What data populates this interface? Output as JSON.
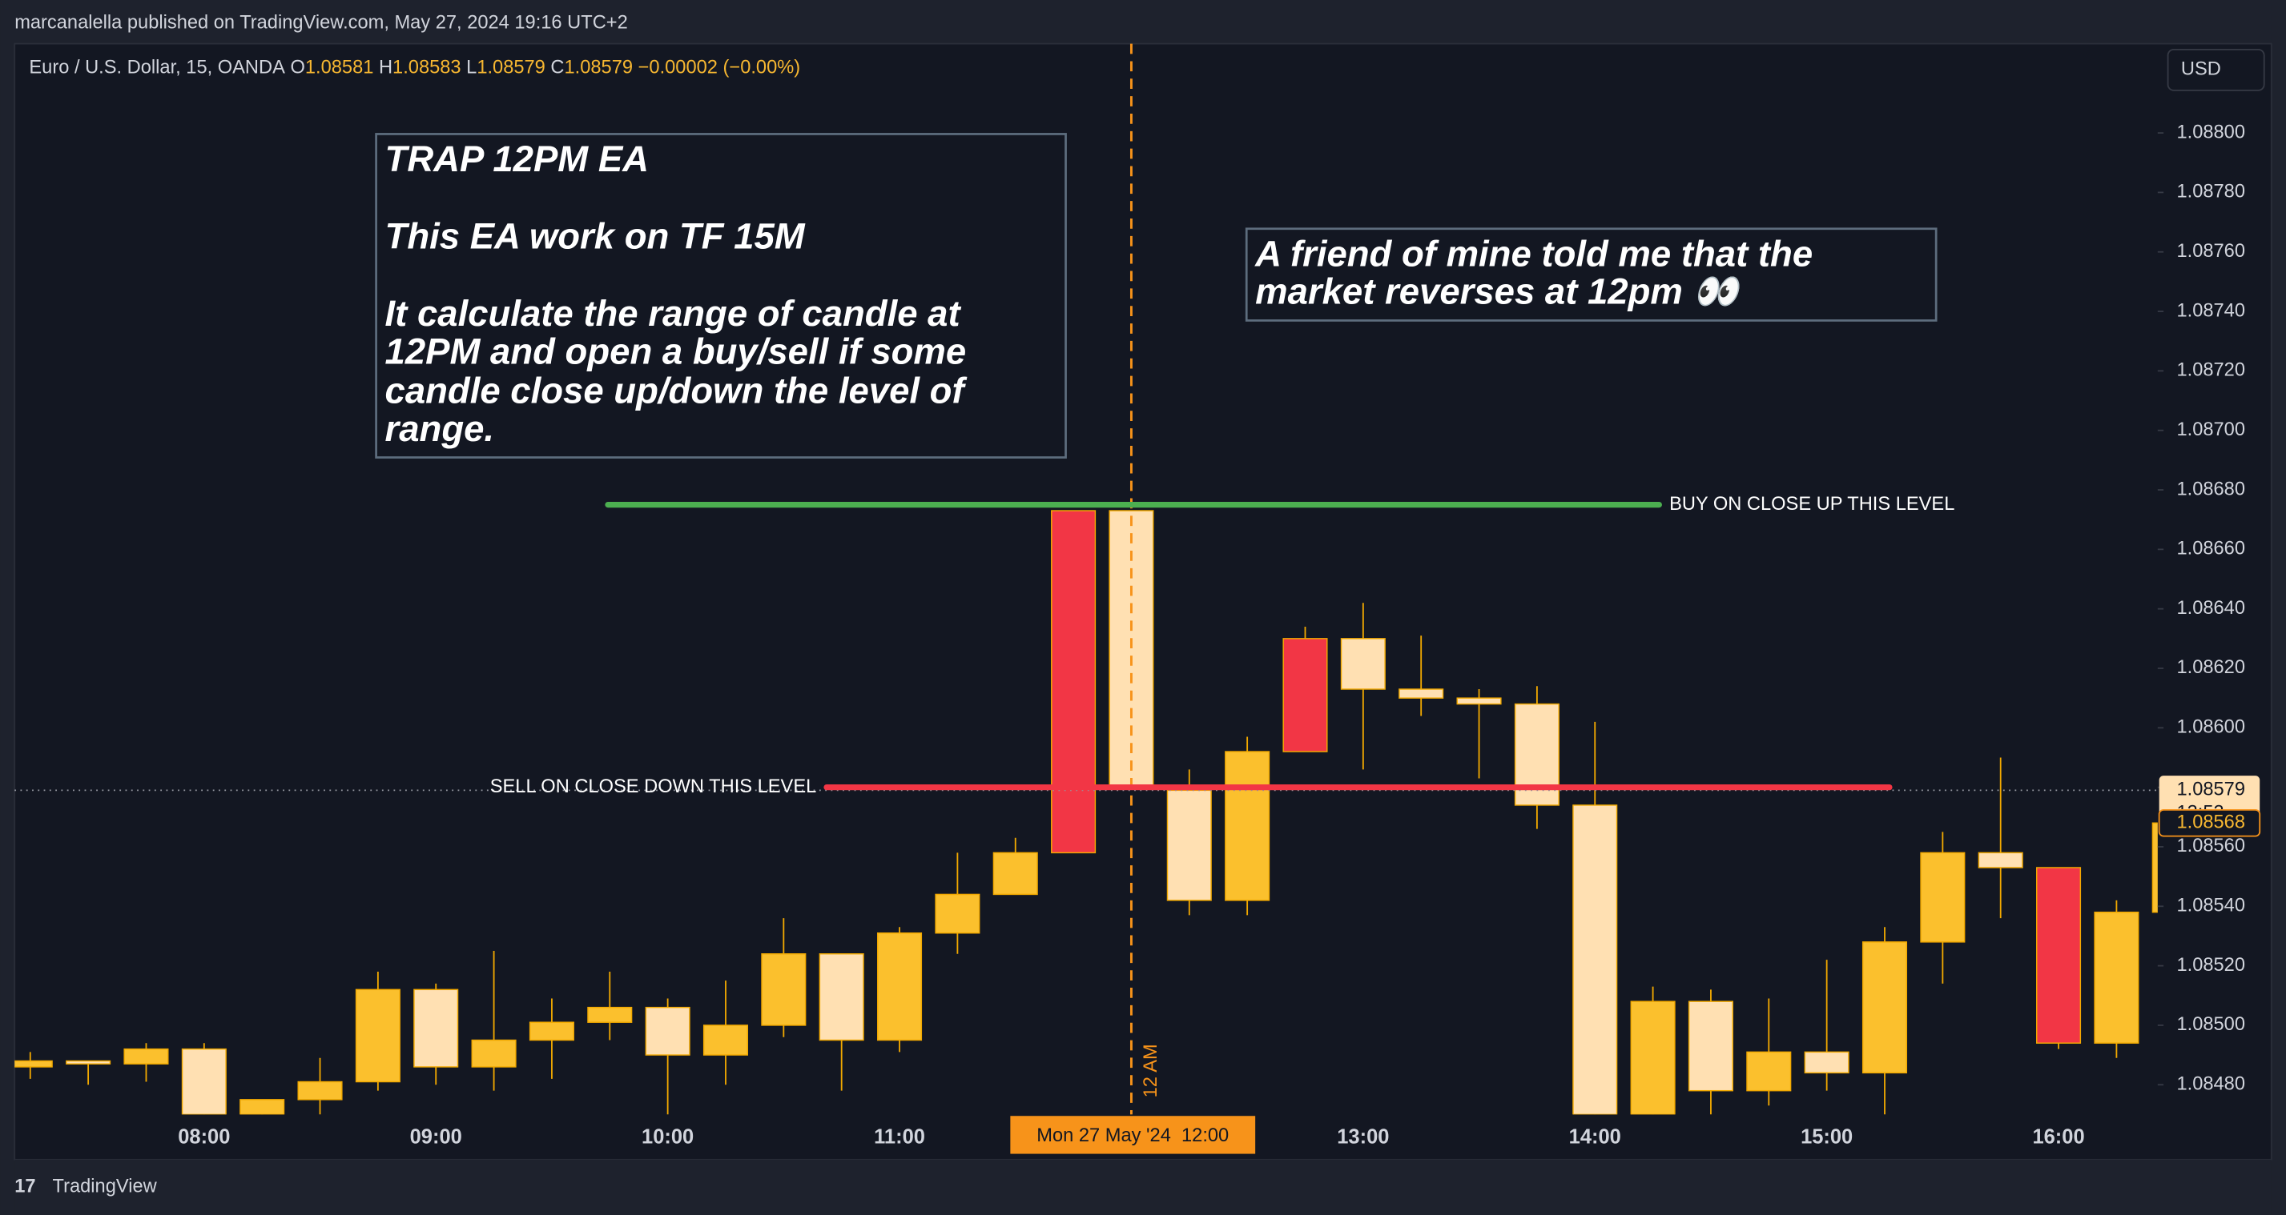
{
  "page": {
    "published": "marcanalella published on TradingView.com, May 27, 2024 19:16 UTC+2",
    "brand": "TradingView",
    "currency": "USD"
  },
  "chart_data": {
    "type": "candlestick",
    "title": "Euro / U.S. Dollar, 15, OANDA",
    "ohlc_header": {
      "open_label": "O",
      "open": 1.08581,
      "high_label": "H",
      "high": 1.08583,
      "low_label": "L",
      "low": 1.08579,
      "close_label": "C",
      "close": 1.08579,
      "change": "−0.00002 (−0.00%)"
    },
    "categories": [
      null,
      null,
      null,
      "08:00",
      null,
      null,
      null,
      "09:00",
      null,
      null,
      null,
      "10:00",
      null,
      null,
      null,
      "11:00",
      null,
      null,
      null,
      null,
      null,
      null,
      null,
      "13:00",
      null,
      null,
      null,
      "14:00",
      null,
      null,
      null,
      "15:00",
      null,
      null,
      null,
      "16:00",
      null,
      null
    ],
    "cursor_label": "Mon 27 May '24  12:00",
    "vline_label": "12 AM",
    "series": [
      {
        "open": [
          1.08486,
          1.08488,
          1.08487,
          1.08492,
          1.0847,
          1.08475,
          1.08481,
          1.08512,
          1.08486,
          1.08495,
          1.08501,
          1.08506,
          1.0849,
          1.085,
          1.08524,
          1.08495,
          1.08531,
          1.08544,
          1.08558,
          1.08673,
          1.08579,
          1.08542,
          1.08592,
          1.0863,
          1.08613,
          1.0861,
          1.08608,
          1.08574,
          1.0847,
          1.08508,
          1.08478,
          1.08491,
          1.08484,
          1.08528,
          1.08558,
          1.08553,
          1.08494,
          1.08538
        ],
        "high": [
          1.08491,
          1.08488,
          1.08494,
          1.08494,
          1.08475,
          1.08489,
          1.08518,
          1.08514,
          1.08525,
          1.08509,
          1.08518,
          1.08509,
          1.08515,
          1.08536,
          1.08524,
          1.08533,
          1.08558,
          1.08563,
          1.08673,
          1.08673,
          1.08586,
          1.08597,
          1.08634,
          1.08642,
          1.08631,
          1.08613,
          1.08614,
          1.08602,
          1.08513,
          1.08512,
          1.08509,
          1.08522,
          1.08533,
          1.08565,
          1.0859,
          1.08553,
          1.08542,
          1.08568
        ],
        "low": [
          1.08482,
          1.0848,
          1.08481,
          1.0847,
          1.08468,
          1.0847,
          1.08478,
          1.0848,
          1.08478,
          1.08482,
          1.08495,
          1.0847,
          1.0848,
          1.08496,
          1.08478,
          1.08491,
          1.08524,
          1.08544,
          1.08558,
          1.0858,
          1.08537,
          1.08537,
          1.08592,
          1.08586,
          1.08604,
          1.08583,
          1.08566,
          1.0847,
          1.0847,
          1.0847,
          1.08473,
          1.08478,
          1.0847,
          1.08514,
          1.08536,
          1.08492,
          1.08489,
          1.08538
        ],
        "close": [
          1.08488,
          1.08487,
          1.08492,
          1.0847,
          1.08475,
          1.08481,
          1.08512,
          1.08486,
          1.08495,
          1.08501,
          1.08506,
          1.0849,
          1.085,
          1.08524,
          1.08495,
          1.08531,
          1.08544,
          1.08558,
          1.08673,
          1.0858,
          1.08542,
          1.08592,
          1.0863,
          1.08613,
          1.0861,
          1.08608,
          1.08574,
          1.0847,
          1.08508,
          1.08478,
          1.08491,
          1.08484,
          1.08528,
          1.08558,
          1.08553,
          1.08494,
          1.08538,
          1.08568
        ],
        "colors": [
          "#fbc02d",
          "#ffe0b2",
          "#fbc02d",
          "#ffe0b2",
          "#fbc02d",
          "#fbc02d",
          "#fbc02d",
          "#ffe0b2",
          "#fbc02d",
          "#fbc02d",
          "#fbc02d",
          "#ffe0b2",
          "#fbc02d",
          "#fbc02d",
          "#ffe0b2",
          "#fbc02d",
          "#fbc02d",
          "#fbc02d",
          "#f23645",
          "#ffe0b2",
          "#ffe0b2",
          "#fbc02d",
          "#f23645",
          "#ffe0b2",
          "#ffe0b2",
          "#ffe0b2",
          "#ffe0b2",
          "#ffe0b2",
          "#fbc02d",
          "#ffe0b2",
          "#fbc02d",
          "#ffe0b2",
          "#fbc02d",
          "#fbc02d",
          "#ffe0b2",
          "#f23645",
          "#fbc02d",
          "#fbc02d"
        ]
      }
    ],
    "ylim": [
      1.0847,
      1.0883
    ],
    "yticks": [
      {
        "value": 1.0848,
        "label": "1.08480"
      },
      {
        "value": 1.085,
        "label": "1.08500"
      },
      {
        "value": 1.0852,
        "label": "1.08520"
      },
      {
        "value": 1.0854,
        "label": "1.08540"
      },
      {
        "value": 1.0856,
        "label": "1.08560"
      },
      {
        "value": 1.0858,
        "label": "1.08580"
      },
      {
        "value": 1.086,
        "label": "1.08600"
      },
      {
        "value": 1.0862,
        "label": "1.08620"
      },
      {
        "value": 1.0864,
        "label": "1.08640"
      },
      {
        "value": 1.0866,
        "label": "1.08660"
      },
      {
        "value": 1.0868,
        "label": "1.08680"
      },
      {
        "value": 1.087,
        "label": "1.08700"
      },
      {
        "value": 1.0872,
        "label": "1.08720"
      },
      {
        "value": 1.0874,
        "label": "1.08740"
      },
      {
        "value": 1.0876,
        "label": "1.08760"
      },
      {
        "value": 1.0878,
        "label": "1.08780"
      },
      {
        "value": 1.088,
        "label": "1.08800"
      }
    ],
    "grid": false,
    "last_price": 1.08579,
    "countdown": "13:53",
    "price_marker": 1.08568,
    "levels": [
      {
        "label": "BUY ON CLOSE UP THIS LEVEL",
        "value": 1.08675,
        "color": "#4caf50"
      },
      {
        "label": "SELL ON CLOSE DOWN THIS LEVEL",
        "value": 1.0858,
        "color": "#f23645"
      }
    ],
    "notes": [
      [
        "TRAP 12PM EA",
        "This EA work on TF 15M",
        "It calculate the range of candle at",
        "12PM and open a buy/sell if some",
        "candle close up/down the level of",
        "range."
      ],
      [
        "A friend of mine told me that the",
        "market reverses at 12pm 👀"
      ]
    ]
  }
}
